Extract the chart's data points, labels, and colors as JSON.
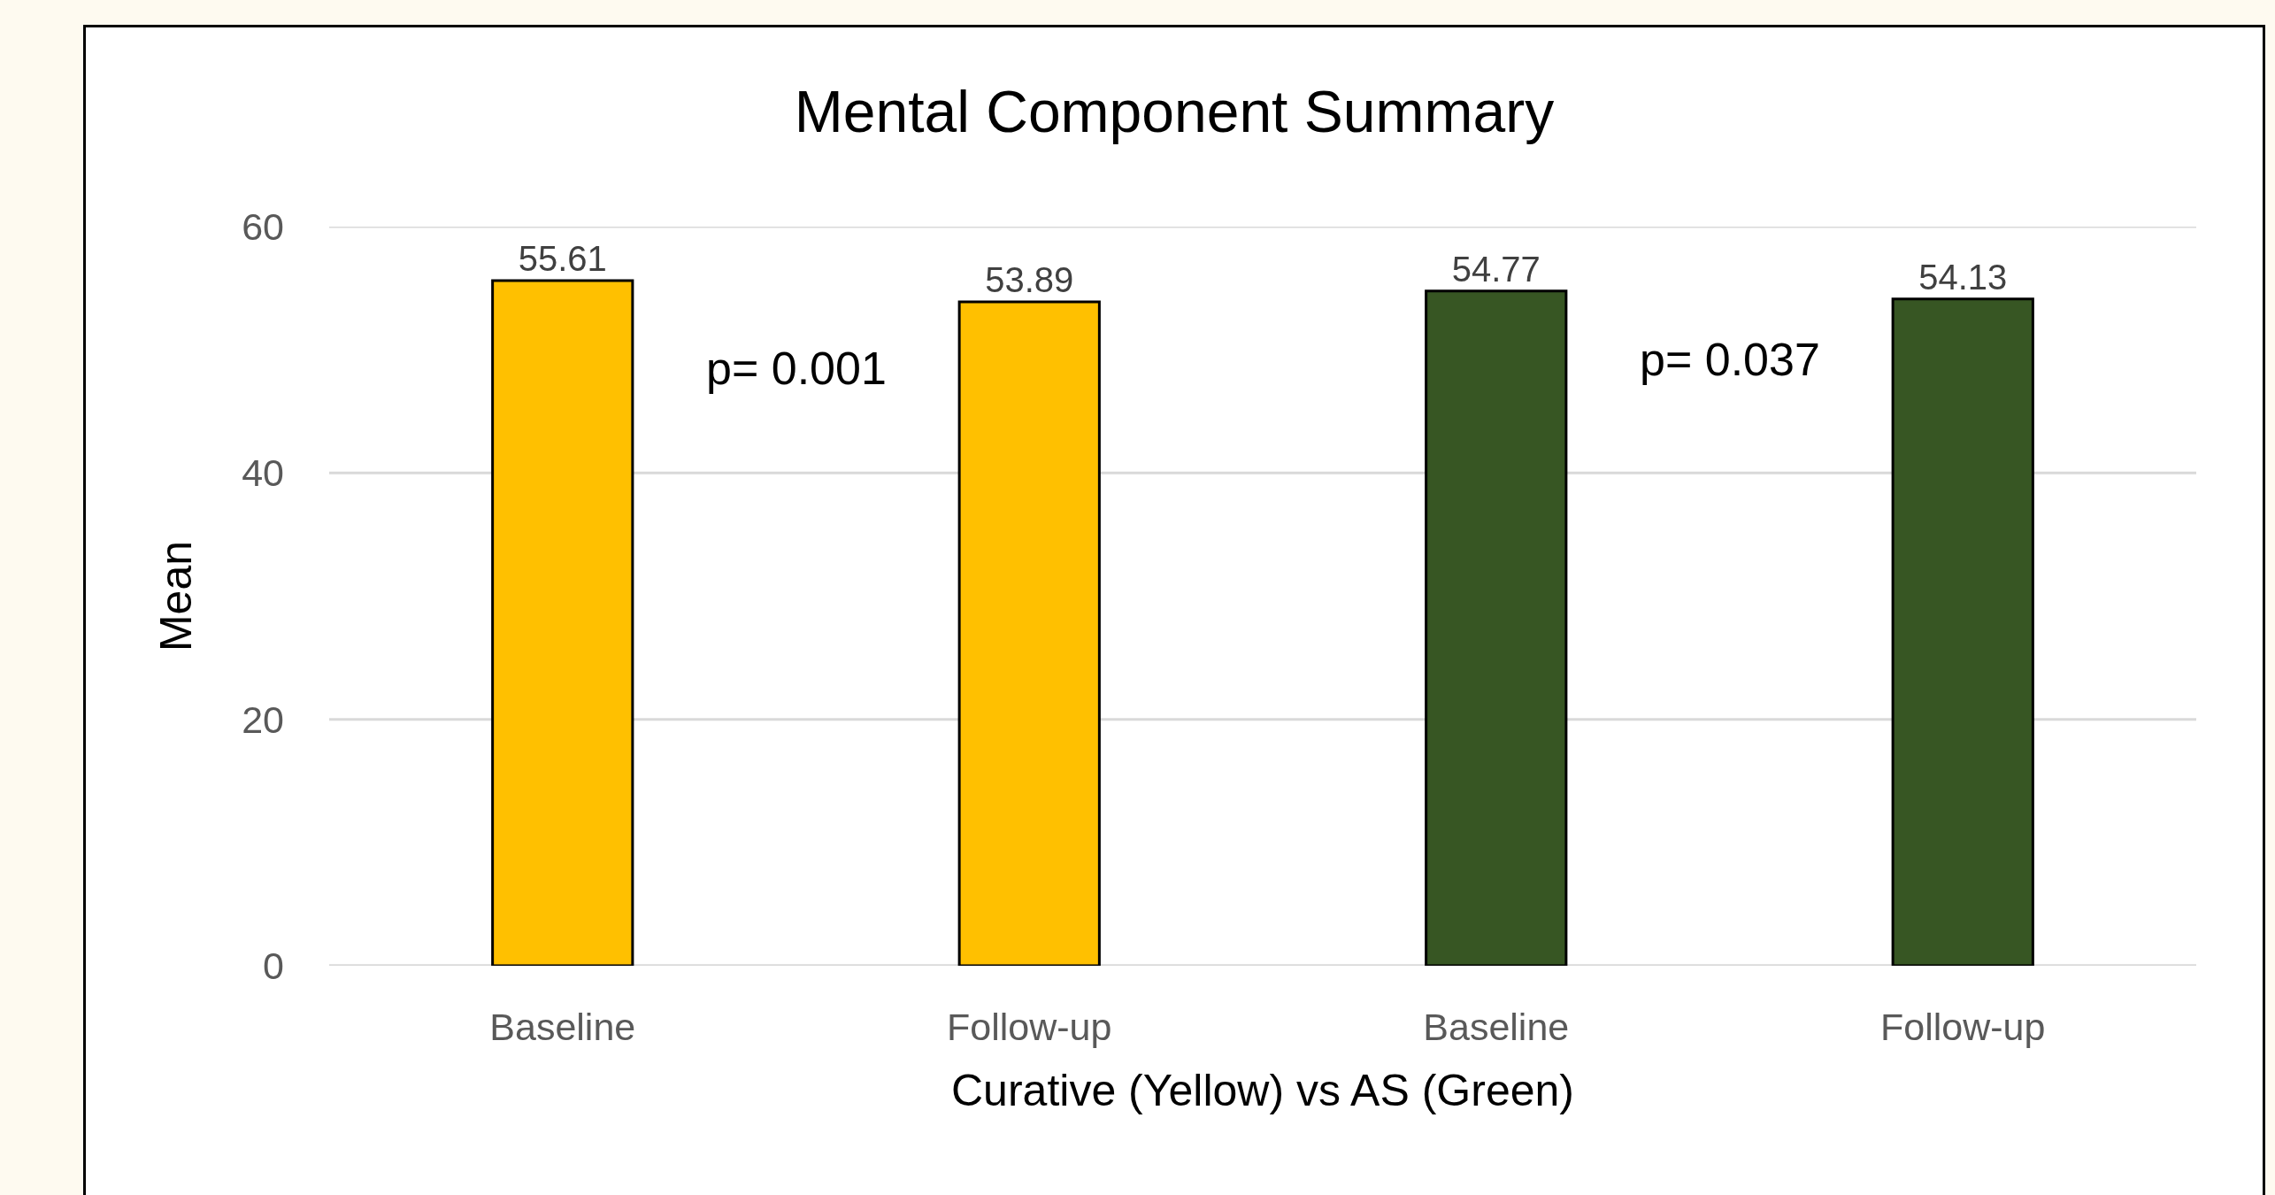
{
  "chart_data": {
    "type": "bar",
    "title": "Mental Component Summary",
    "xlabel": "Curative (Yellow) vs AS (Green)",
    "ylabel": "Mean",
    "categories": [
      "Baseline",
      "Follow-up",
      "Baseline",
      "Follow-up"
    ],
    "values": [
      55.61,
      53.89,
      54.77,
      54.13
    ],
    "colors": [
      "#ffc000",
      "#ffc000",
      "#375623",
      "#375623"
    ],
    "data_labels": true,
    "annotations": [
      "p= 0.001",
      "p= 0.037"
    ],
    "ylim": [
      0,
      60
    ],
    "yticks": [
      0,
      20,
      40,
      60
    ],
    "grid": "y"
  }
}
